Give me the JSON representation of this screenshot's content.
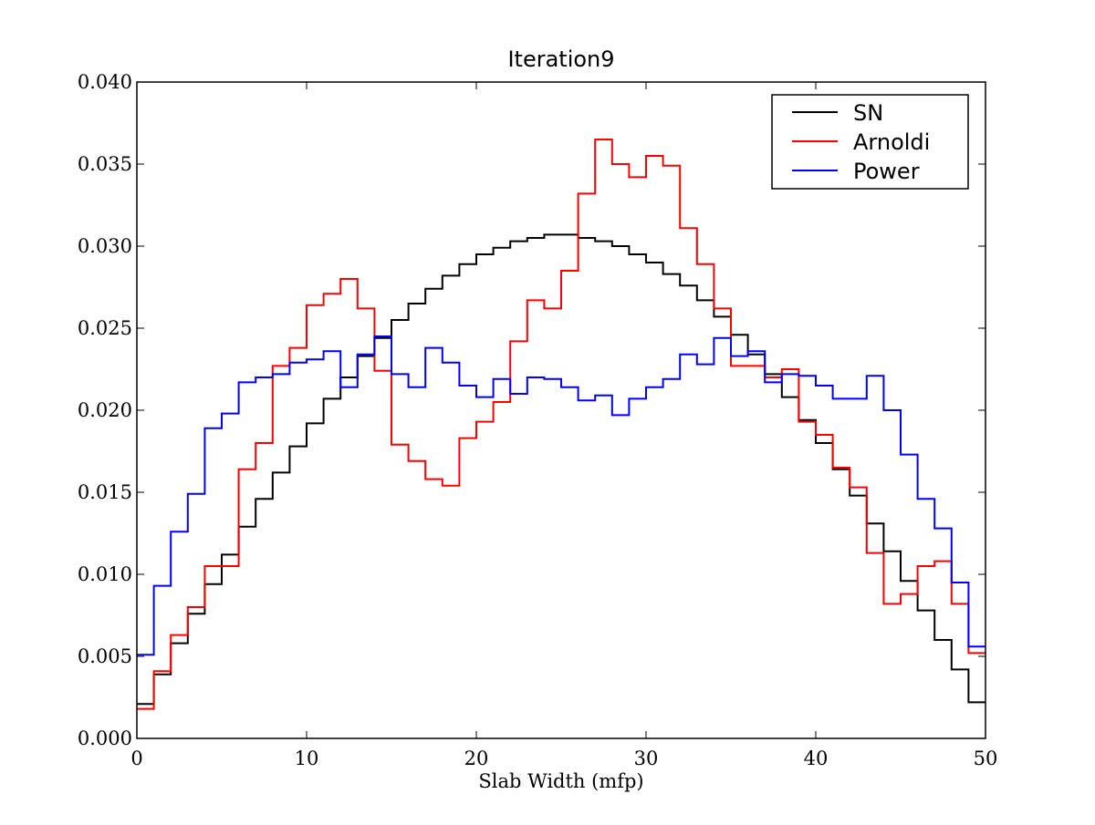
{
  "chart_data": {
    "type": "line",
    "style": "step",
    "title": "Iteration9",
    "xlabel": "Slab Width (mfp)",
    "ylabel": "",
    "xlim": [
      0,
      50
    ],
    "ylim": [
      0,
      0.04
    ],
    "xticks": [
      "0",
      "10",
      "20",
      "30",
      "40",
      "50"
    ],
    "yticks": [
      "0.000",
      "0.005",
      "0.010",
      "0.015",
      "0.020",
      "0.025",
      "0.030",
      "0.035",
      "0.040"
    ],
    "grid": false,
    "legend_position": "top-right",
    "bins": [
      0.5,
      1.5,
      2.5,
      3.5,
      4.5,
      5.5,
      6.5,
      7.5,
      8.5,
      9.5,
      10.5,
      11.5,
      12.5,
      13.5,
      14.5,
      15.5,
      16.5,
      17.5,
      18.5,
      19.5,
      20.5,
      21.5,
      22.5,
      23.5,
      24.5,
      25.5,
      26.5,
      27.5,
      28.5,
      29.5,
      30.5,
      31.5,
      32.5,
      33.5,
      34.5,
      35.5,
      36.5,
      37.5,
      38.5,
      39.5,
      40.5,
      41.5,
      42.5,
      43.5,
      44.5,
      45.5,
      46.5,
      47.5,
      48.5,
      49.5
    ],
    "series": [
      {
        "name": "SN",
        "color": "#000000",
        "values": [
          0.0021,
          0.0039,
          0.0058,
          0.0076,
          0.0094,
          0.0112,
          0.0129,
          0.0146,
          0.0162,
          0.0178,
          0.0192,
          0.0207,
          0.022,
          0.0233,
          0.0244,
          0.0255,
          0.0265,
          0.0274,
          0.0282,
          0.0289,
          0.0295,
          0.0299,
          0.0303,
          0.0305,
          0.0307,
          0.0307,
          0.0305,
          0.0303,
          0.03,
          0.0295,
          0.029,
          0.0283,
          0.0276,
          0.0267,
          0.0257,
          0.0246,
          0.0234,
          0.0222,
          0.0208,
          0.0194,
          0.018,
          0.0164,
          0.0148,
          0.0131,
          0.0114,
          0.0096,
          0.0078,
          0.006,
          0.0042,
          0.0022
        ]
      },
      {
        "name": "Arnoldi",
        "color": "#ff0000",
        "values": [
          0.0018,
          0.0041,
          0.0063,
          0.008,
          0.0105,
          0.0105,
          0.0164,
          0.018,
          0.0227,
          0.0238,
          0.0264,
          0.0271,
          0.028,
          0.0262,
          0.0224,
          0.0179,
          0.0169,
          0.0158,
          0.0154,
          0.0183,
          0.0193,
          0.0205,
          0.0242,
          0.0267,
          0.0262,
          0.0285,
          0.0332,
          0.0365,
          0.035,
          0.0342,
          0.0355,
          0.0349,
          0.0311,
          0.0289,
          0.0262,
          0.0227,
          0.0227,
          0.022,
          0.0225,
          0.0193,
          0.0185,
          0.0165,
          0.0153,
          0.0113,
          0.0082,
          0.0088,
          0.0105,
          0.0108,
          0.0082,
          0.0052
        ]
      },
      {
        "name": "Power",
        "color": "#0000ff",
        "values": [
          0.0051,
          0.0093,
          0.0126,
          0.0149,
          0.0189,
          0.0198,
          0.0217,
          0.022,
          0.0222,
          0.0229,
          0.0231,
          0.0236,
          0.0214,
          0.0234,
          0.0245,
          0.0222,
          0.0214,
          0.0238,
          0.0229,
          0.0215,
          0.0208,
          0.0219,
          0.021,
          0.022,
          0.0219,
          0.0214,
          0.0206,
          0.0209,
          0.0197,
          0.0207,
          0.0214,
          0.0219,
          0.0234,
          0.0228,
          0.0244,
          0.0233,
          0.0236,
          0.0217,
          0.0222,
          0.0221,
          0.0215,
          0.0207,
          0.0207,
          0.0221,
          0.02,
          0.0173,
          0.0146,
          0.0128,
          0.0095,
          0.0056
        ]
      }
    ]
  }
}
